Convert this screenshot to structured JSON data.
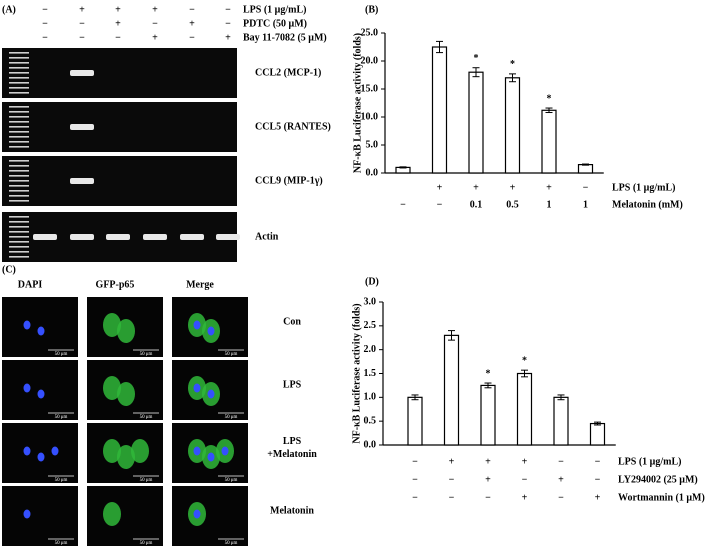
{
  "panel_a": {
    "label": "(A)",
    "treatments": [
      {
        "name": "LPS (1 μg/mL)",
        "signs": [
          "−",
          "+",
          "+",
          "+",
          "−",
          "−"
        ]
      },
      {
        "name": "PDTC (50 μM)",
        "signs": [
          "−",
          "−",
          "+",
          "−",
          "+",
          "−"
        ]
      },
      {
        "name": "Bay 11-7082 (5 μM)",
        "signs": [
          "−",
          "−",
          "−",
          "+",
          "−",
          "+"
        ]
      }
    ],
    "gels": [
      {
        "name": "CCL2 (MCP-1)",
        "bands": [
          false,
          true,
          false,
          false,
          false,
          false
        ]
      },
      {
        "name": "CCL5 (RANTES)",
        "bands": [
          false,
          true,
          false,
          false,
          false,
          false
        ]
      },
      {
        "name": "CCL9 (MIP-1γ)",
        "bands": [
          false,
          true,
          false,
          false,
          false,
          false
        ]
      },
      {
        "name": "Actin",
        "bands": [
          true,
          true,
          true,
          true,
          true,
          true
        ]
      }
    ]
  },
  "panel_c": {
    "label": "(C)",
    "columns": [
      "DAPI",
      "GFP-p65",
      "Merge"
    ],
    "rows": [
      "Con",
      "LPS",
      "LPS\n+Melatonin",
      "Melatonin"
    ],
    "scale_label": "50 μm"
  },
  "chart_data": [
    {
      "type": "bar",
      "panel_label": "(B)",
      "ylabel": "NF-κB Luciferase activity (folds)",
      "ylim": [
        0,
        25
      ],
      "yticks": [
        {
          "value": 0,
          "label": "0.0"
        },
        {
          "value": 5,
          "label": "5.0"
        },
        {
          "value": 10,
          "label": "10.0"
        },
        {
          "value": 15,
          "label": "15.0"
        },
        {
          "value": 20,
          "label": "20.0"
        },
        {
          "value": 25,
          "label": "25.0"
        }
      ],
      "values": [
        1.0,
        22.5,
        18.0,
        17.0,
        11.2,
        1.5
      ],
      "errors": [
        0.1,
        1.0,
        0.8,
        0.7,
        0.4,
        0.1
      ],
      "significant": [
        false,
        false,
        true,
        true,
        true,
        false
      ],
      "significance_label": "*",
      "color": "#ffffff",
      "condition_rows": [
        {
          "name": "LPS (1 μg/mL)",
          "labels": [
            null,
            "+",
            "+",
            "+",
            "+",
            "−"
          ]
        },
        {
          "name": "Melatonin (mM)",
          "labels": [
            "−",
            "−",
            "0.1",
            "0.5",
            "1",
            "1"
          ]
        }
      ]
    },
    {
      "type": "bar",
      "panel_label": "(D)",
      "ylabel": "NF-κB Luciferase activity (folds)",
      "ylim": [
        0,
        3
      ],
      "yticks": [
        {
          "value": 0,
          "label": "0.0"
        },
        {
          "value": 0.5,
          "label": "0.5"
        },
        {
          "value": 1,
          "label": "1.0"
        },
        {
          "value": 1.5,
          "label": "1.5"
        },
        {
          "value": 2,
          "label": "2.0"
        },
        {
          "value": 2.5,
          "label": "2.5"
        },
        {
          "value": 3,
          "label": "3.0"
        }
      ],
      "values": [
        1.0,
        2.3,
        1.25,
        1.5,
        1.0,
        0.45
      ],
      "errors": [
        0.05,
        0.1,
        0.05,
        0.07,
        0.05,
        0.03
      ],
      "significant": [
        false,
        false,
        true,
        true,
        false,
        false
      ],
      "significance_label": "*",
      "color": "#ffffff",
      "condition_rows": [
        {
          "name": "LPS (1 μg/mL)",
          "labels": [
            "−",
            "+",
            "+",
            "+",
            "−",
            "−"
          ]
        },
        {
          "name": "LY294002 (25 μM)",
          "labels": [
            "−",
            "−",
            "+",
            "−",
            "+",
            "−"
          ]
        },
        {
          "name": "Wortmannin (1 μM)",
          "labels": [
            "−",
            "−",
            "−",
            "+",
            "−",
            "+"
          ]
        }
      ]
    }
  ]
}
